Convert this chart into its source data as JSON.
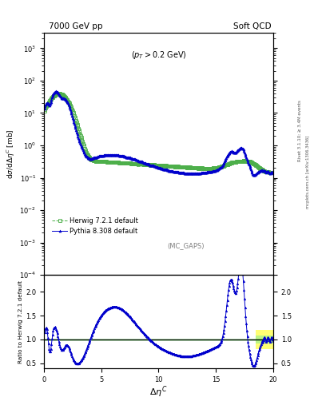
{
  "title_left": "7000 GeV pp",
  "title_right": "Soft QCD",
  "annotation": "(p_{T} > 0.2 GeV)",
  "mc_label": "(MC_GAPS)",
  "ylabel_main": "dσ/dΔη$^C$ [mb]",
  "ylabel_ratio": "Ratio to Herwig 7.2.1 default",
  "xlabel": "Δη$^C$",
  "right_label1": "Rivet 3.1.10; ≥ 3.4M events",
  "right_label2": "mcplots.cern.ch [arXiv:1306.3436]",
  "herwig_color": "#4daf4a",
  "pythia_color": "#0000cc",
  "ylim_main": [
    0.0001,
    3000.0
  ],
  "ylim_ratio": [
    0.4,
    2.35
  ],
  "xlim": [
    0,
    20
  ],
  "xticks": [
    0,
    5,
    10,
    15,
    20
  ],
  "legend_herwig": "Herwig 7.2.1 default",
  "legend_pythia": "Pythia 8.308 default"
}
